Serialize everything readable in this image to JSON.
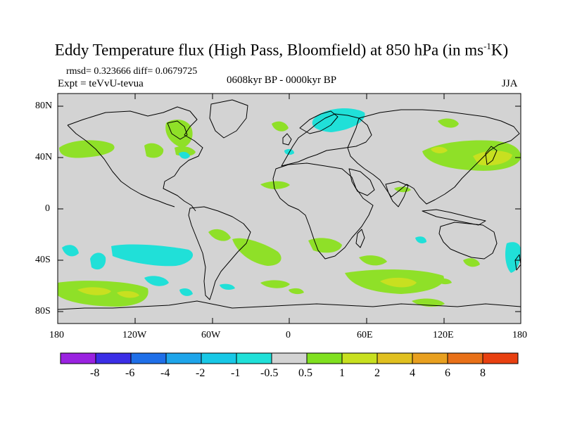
{
  "header": {
    "title_main": "Eddy Temperature flux (High Pass, Bloomfield) at 850 hPa (in ms",
    "title_sup": "-1",
    "title_end": "K)",
    "stats": "rmsd= 0.323666 diff= 0.0679725",
    "expt": "Expt = teVvU-tevua",
    "period": "0608kyr BP - 0000kyr BP",
    "season": "JJA"
  },
  "axes": {
    "lat_labels": [
      "80N",
      "40N",
      "0",
      "40S",
      "80S"
    ],
    "lon_labels": [
      "180",
      "120W",
      "60W",
      "0",
      "60E",
      "120E",
      "180"
    ]
  },
  "colorbar": {
    "labels": [
      "-8",
      "-6",
      "-4",
      "-2",
      "-1",
      "-0.5",
      "0.5",
      "1",
      "2",
      "4",
      "6",
      "8"
    ],
    "colors": [
      "#9a22e0",
      "#3b2ee6",
      "#1f6fe8",
      "#1ea5ea",
      "#18c8e6",
      "#20e0d8",
      "#d3d3d3",
      "#80e020",
      "#c8e020",
      "#e0c020",
      "#e8a020",
      "#e87018",
      "#e84010"
    ]
  },
  "map": {
    "background": "#d3d3d3",
    "palette": {
      "light_green": "#8fe028",
      "yellow_green": "#c8e020",
      "cyan": "#20e0d8"
    }
  }
}
